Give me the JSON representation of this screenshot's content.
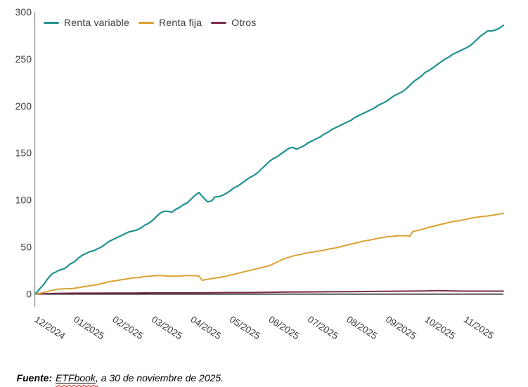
{
  "footer": {
    "prefix": "Fuente:",
    "link": "ETFbook",
    "comma": ",",
    "rest": " a 30 de noviembre de 2025."
  },
  "colors": {
    "y_axis_line": "#8f8f8f",
    "x_axis_line": "#141414",
    "tick_text": "#3a3a3a",
    "spellcheck_wavy": "#e0261f"
  },
  "chart_data": {
    "type": "line",
    "title": "",
    "xlabel": "",
    "ylabel": "",
    "x_unit": "months since 2024-12-01",
    "xlim": [
      0,
      12
    ],
    "ylim": [
      0,
      300
    ],
    "yticks": [
      0,
      50,
      100,
      150,
      200,
      250,
      300
    ],
    "x_tick_labels": [
      "12/2024",
      "01/2025",
      "02/2025",
      "03/2025",
      "04/2025",
      "05/2025",
      "06/2025",
      "07/2025",
      "08/2025",
      "09/2025",
      "10/2025",
      "11/2025"
    ],
    "grid": false,
    "legend_position": "top-left",
    "series": [
      {
        "name": "Renta variable",
        "color": "#21918f",
        "points": [
          [
            0,
            0
          ],
          [
            0.07,
            3
          ],
          [
            0.15,
            7
          ],
          [
            0.22,
            10
          ],
          [
            0.3,
            15
          ],
          [
            0.38,
            19
          ],
          [
            0.45,
            22
          ],
          [
            0.52,
            23
          ],
          [
            0.6,
            25
          ],
          [
            0.68,
            26
          ],
          [
            0.75,
            27
          ],
          [
            0.82,
            29
          ],
          [
            0.9,
            32
          ],
          [
            1,
            34
          ],
          [
            1.1,
            38
          ],
          [
            1.2,
            41
          ],
          [
            1.3,
            43
          ],
          [
            1.4,
            45
          ],
          [
            1.5,
            46
          ],
          [
            1.6,
            48
          ],
          [
            1.7,
            50
          ],
          [
            1.8,
            53
          ],
          [
            1.9,
            56
          ],
          [
            2,
            58
          ],
          [
            2.1,
            60
          ],
          [
            2.2,
            62
          ],
          [
            2.3,
            64
          ],
          [
            2.4,
            66
          ],
          [
            2.5,
            67
          ],
          [
            2.6,
            68
          ],
          [
            2.7,
            70
          ],
          [
            2.8,
            73
          ],
          [
            2.9,
            75
          ],
          [
            3,
            78
          ],
          [
            3.1,
            82
          ],
          [
            3.2,
            86
          ],
          [
            3.3,
            88
          ],
          [
            3.4,
            88
          ],
          [
            3.5,
            87
          ],
          [
            3.6,
            90
          ],
          [
            3.7,
            92
          ],
          [
            3.8,
            95
          ],
          [
            3.9,
            97
          ],
          [
            4,
            101
          ],
          [
            4.1,
            105
          ],
          [
            4.2,
            108
          ],
          [
            4.3,
            103
          ],
          [
            4.42,
            98
          ],
          [
            4.52,
            99
          ],
          [
            4.6,
            103
          ],
          [
            4.75,
            104
          ],
          [
            4.9,
            107
          ],
          [
            5,
            110
          ],
          [
            5.1,
            113
          ],
          [
            5.2,
            115
          ],
          [
            5.3,
            118
          ],
          [
            5.4,
            121
          ],
          [
            5.5,
            124
          ],
          [
            5.6,
            126
          ],
          [
            5.7,
            129
          ],
          [
            5.8,
            133
          ],
          [
            5.9,
            137
          ],
          [
            6,
            141
          ],
          [
            6.1,
            144
          ],
          [
            6.2,
            146
          ],
          [
            6.3,
            149
          ],
          [
            6.4,
            152
          ],
          [
            6.5,
            155
          ],
          [
            6.6,
            156
          ],
          [
            6.7,
            154
          ],
          [
            6.8,
            156
          ],
          [
            6.9,
            158
          ],
          [
            7,
            161
          ],
          [
            7.1,
            163
          ],
          [
            7.2,
            165
          ],
          [
            7.3,
            167
          ],
          [
            7.4,
            170
          ],
          [
            7.5,
            172
          ],
          [
            7.6,
            175
          ],
          [
            7.7,
            177
          ],
          [
            7.8,
            179
          ],
          [
            7.9,
            181
          ],
          [
            8,
            183
          ],
          [
            8.1,
            185
          ],
          [
            8.2,
            188
          ],
          [
            8.3,
            190
          ],
          [
            8.4,
            192
          ],
          [
            8.5,
            194
          ],
          [
            8.6,
            196
          ],
          [
            8.7,
            198
          ],
          [
            8.8,
            201
          ],
          [
            8.9,
            203
          ],
          [
            9,
            205
          ],
          [
            9.1,
            208
          ],
          [
            9.2,
            211
          ],
          [
            9.3,
            213
          ],
          [
            9.4,
            215
          ],
          [
            9.5,
            218
          ],
          [
            9.6,
            222
          ],
          [
            9.7,
            226
          ],
          [
            9.8,
            229
          ],
          [
            9.9,
            232
          ],
          [
            10,
            236
          ],
          [
            10.1,
            238
          ],
          [
            10.2,
            241
          ],
          [
            10.3,
            244
          ],
          [
            10.4,
            247
          ],
          [
            10.5,
            250
          ],
          [
            10.6,
            252
          ],
          [
            10.7,
            255
          ],
          [
            10.8,
            257
          ],
          [
            10.9,
            259
          ],
          [
            11,
            261
          ],
          [
            11.1,
            263
          ],
          [
            11.2,
            266
          ],
          [
            11.3,
            270
          ],
          [
            11.4,
            274
          ],
          [
            11.5,
            277
          ],
          [
            11.6,
            280
          ],
          [
            11.7,
            280
          ],
          [
            11.8,
            281
          ],
          [
            11.9,
            283
          ],
          [
            12,
            286
          ]
        ]
      },
      {
        "name": "Renta fija",
        "color": "#d9a233",
        "points": [
          [
            0,
            0
          ],
          [
            0.15,
            1
          ],
          [
            0.3,
            2.5
          ],
          [
            0.45,
            4
          ],
          [
            0.6,
            5
          ],
          [
            0.75,
            5.5
          ],
          [
            0.9,
            5.5
          ],
          [
            1,
            6
          ],
          [
            1.15,
            7
          ],
          [
            1.3,
            8
          ],
          [
            1.45,
            9
          ],
          [
            1.6,
            10
          ],
          [
            1.75,
            11.5
          ],
          [
            1.9,
            13
          ],
          [
            2.05,
            14
          ],
          [
            2.2,
            15
          ],
          [
            2.35,
            16
          ],
          [
            2.5,
            17
          ],
          [
            2.65,
            17.5
          ],
          [
            2.8,
            18.5
          ],
          [
            2.95,
            19
          ],
          [
            3.1,
            19.5
          ],
          [
            3.25,
            19.5
          ],
          [
            3.4,
            19
          ],
          [
            3.55,
            19
          ],
          [
            3.7,
            19
          ],
          [
            3.85,
            19.5
          ],
          [
            4,
            19.5
          ],
          [
            4.1,
            19.5
          ],
          [
            4.2,
            19
          ],
          [
            4.28,
            14.5
          ],
          [
            4.4,
            15.5
          ],
          [
            4.55,
            16.5
          ],
          [
            4.7,
            17.5
          ],
          [
            4.85,
            18.5
          ],
          [
            5,
            20
          ],
          [
            5.15,
            21.5
          ],
          [
            5.3,
            23
          ],
          [
            5.45,
            24.5
          ],
          [
            5.6,
            26
          ],
          [
            5.75,
            27.5
          ],
          [
            5.9,
            29
          ],
          [
            6,
            30
          ],
          [
            6.1,
            32
          ],
          [
            6.2,
            34
          ],
          [
            6.35,
            37
          ],
          [
            6.5,
            39
          ],
          [
            6.65,
            41
          ],
          [
            6.8,
            42
          ],
          [
            6.95,
            43.5
          ],
          [
            7.1,
            44.5
          ],
          [
            7.25,
            45.5
          ],
          [
            7.4,
            46.5
          ],
          [
            7.55,
            48
          ],
          [
            7.7,
            49
          ],
          [
            7.85,
            50.5
          ],
          [
            8,
            52
          ],
          [
            8.15,
            53.5
          ],
          [
            8.3,
            55
          ],
          [
            8.45,
            56.5
          ],
          [
            8.6,
            57.5
          ],
          [
            8.75,
            59
          ],
          [
            8.9,
            60
          ],
          [
            9.05,
            61
          ],
          [
            9.2,
            61.5
          ],
          [
            9.35,
            62
          ],
          [
            9.5,
            62
          ],
          [
            9.6,
            61.5
          ],
          [
            9.68,
            66.5
          ],
          [
            9.8,
            67.5
          ],
          [
            9.95,
            69
          ],
          [
            10.1,
            71
          ],
          [
            10.25,
            72.5
          ],
          [
            10.4,
            74
          ],
          [
            10.55,
            75.5
          ],
          [
            10.7,
            77
          ],
          [
            10.85,
            78
          ],
          [
            11,
            79
          ],
          [
            11.15,
            80.5
          ],
          [
            11.3,
            81.5
          ],
          [
            11.45,
            82.5
          ],
          [
            11.6,
            83
          ],
          [
            11.75,
            84
          ],
          [
            11.9,
            85
          ],
          [
            12,
            86
          ]
        ]
      },
      {
        "name": "Otros",
        "color": "#7c2d4d",
        "points": [
          [
            0,
            0
          ],
          [
            0.5,
            0.5
          ],
          [
            1,
            0.8
          ],
          [
            1.5,
            0.8
          ],
          [
            2,
            1
          ],
          [
            2.5,
            1
          ],
          [
            3,
            1.2
          ],
          [
            3.5,
            1.2
          ],
          [
            4,
            1.2
          ],
          [
            4.5,
            1.3
          ],
          [
            5,
            1.5
          ],
          [
            5.5,
            1.5
          ],
          [
            6,
            1.8
          ],
          [
            6.5,
            2
          ],
          [
            7,
            2.2
          ],
          [
            7.5,
            2.3
          ],
          [
            8,
            2.5
          ],
          [
            8.5,
            2.6
          ],
          [
            9,
            2.8
          ],
          [
            9.5,
            3
          ],
          [
            10,
            3.2
          ],
          [
            10.3,
            3.5
          ],
          [
            10.6,
            3.3
          ],
          [
            11,
            3
          ],
          [
            11.5,
            3
          ],
          [
            12,
            3
          ]
        ]
      }
    ]
  }
}
